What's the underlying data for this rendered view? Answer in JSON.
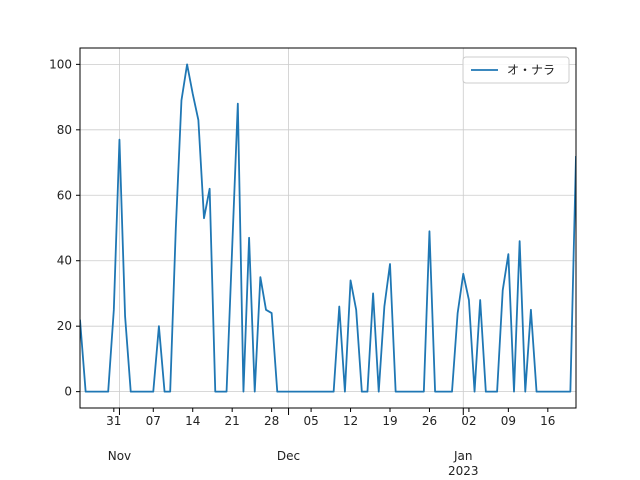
{
  "chart_data": {
    "type": "line",
    "x": [
      "2022-10-25",
      "2022-10-26",
      "2022-10-27",
      "2022-10-28",
      "2022-10-29",
      "2022-10-30",
      "2022-10-31",
      "2022-11-01",
      "2022-11-02",
      "2022-11-03",
      "2022-11-04",
      "2022-11-05",
      "2022-11-06",
      "2022-11-07",
      "2022-11-08",
      "2022-11-09",
      "2022-11-10",
      "2022-11-11",
      "2022-11-12",
      "2022-11-13",
      "2022-11-14",
      "2022-11-15",
      "2022-11-16",
      "2022-11-17",
      "2022-11-18",
      "2022-11-19",
      "2022-11-20",
      "2022-11-21",
      "2022-11-22",
      "2022-11-23",
      "2022-11-24",
      "2022-11-25",
      "2022-11-26",
      "2022-11-27",
      "2022-11-28",
      "2022-11-29",
      "2022-11-30",
      "2022-12-01",
      "2022-12-02",
      "2022-12-03",
      "2022-12-04",
      "2022-12-05",
      "2022-12-06",
      "2022-12-07",
      "2022-12-08",
      "2022-12-09",
      "2022-12-10",
      "2022-12-11",
      "2022-12-12",
      "2022-12-13",
      "2022-12-14",
      "2022-12-15",
      "2022-12-16",
      "2022-12-17",
      "2022-12-18",
      "2022-12-19",
      "2022-12-20",
      "2022-12-21",
      "2022-12-22",
      "2022-12-23",
      "2022-12-24",
      "2022-12-25",
      "2022-12-26",
      "2022-12-27",
      "2022-12-28",
      "2022-12-29",
      "2022-12-30",
      "2022-12-31",
      "2023-01-01",
      "2023-01-02",
      "2023-01-03",
      "2023-01-04",
      "2023-01-05",
      "2023-01-06",
      "2023-01-07",
      "2023-01-08",
      "2023-01-09",
      "2023-01-10",
      "2023-01-11",
      "2023-01-12",
      "2023-01-13",
      "2023-01-14",
      "2023-01-15",
      "2023-01-16",
      "2023-01-17",
      "2023-01-18",
      "2023-01-19",
      "2023-01-20",
      "2023-01-21"
    ],
    "series": [
      {
        "name": "オ・ナラ",
        "color": "#1f77b4",
        "values": [
          22,
          0,
          0,
          0,
          0,
          0,
          25,
          77,
          23,
          0,
          0,
          0,
          0,
          0,
          20,
          0,
          0,
          50,
          89,
          100,
          91,
          83,
          53,
          62,
          0,
          0,
          0,
          44,
          88,
          0,
          47,
          0,
          35,
          25,
          24,
          0,
          0,
          0,
          0,
          0,
          0,
          0,
          0,
          0,
          0,
          0,
          26,
          0,
          34,
          25,
          0,
          0,
          30,
          0,
          26,
          39,
          0,
          0,
          0,
          0,
          0,
          0,
          49,
          0,
          0,
          0,
          0,
          24,
          36,
          28,
          0,
          28,
          0,
          0,
          0,
          31,
          42,
          0,
          46,
          0,
          25,
          0,
          0,
          0,
          0,
          0,
          0,
          0,
          72
        ]
      }
    ],
    "xlim": [
      "2022-10-25",
      "2023-01-21"
    ],
    "xticks": [
      {
        "value": "2022-10-31",
        "label": "31"
      },
      {
        "value": "2022-11-07",
        "label": "07"
      },
      {
        "value": "2022-11-14",
        "label": "14"
      },
      {
        "value": "2022-11-21",
        "label": "21"
      },
      {
        "value": "2022-11-28",
        "label": "28"
      },
      {
        "value": "2022-12-05",
        "label": "05"
      },
      {
        "value": "2022-12-12",
        "label": "12"
      },
      {
        "value": "2022-12-19",
        "label": "19"
      },
      {
        "value": "2022-12-26",
        "label": "26"
      },
      {
        "value": "2023-01-02",
        "label": "02"
      },
      {
        "value": "2023-01-09",
        "label": "09"
      },
      {
        "value": "2023-01-16",
        "label": "16"
      }
    ],
    "xticks_major": [
      {
        "value": "2022-11-01",
        "label": "Nov"
      },
      {
        "value": "2022-12-01",
        "label": "Dec"
      },
      {
        "value": "2023-01-01",
        "label": "Jan\n2023"
      }
    ],
    "ylim": [
      -5,
      105
    ],
    "yticks": [
      0,
      20,
      40,
      60,
      80,
      100
    ],
    "grid": true,
    "legend": "upper right"
  }
}
